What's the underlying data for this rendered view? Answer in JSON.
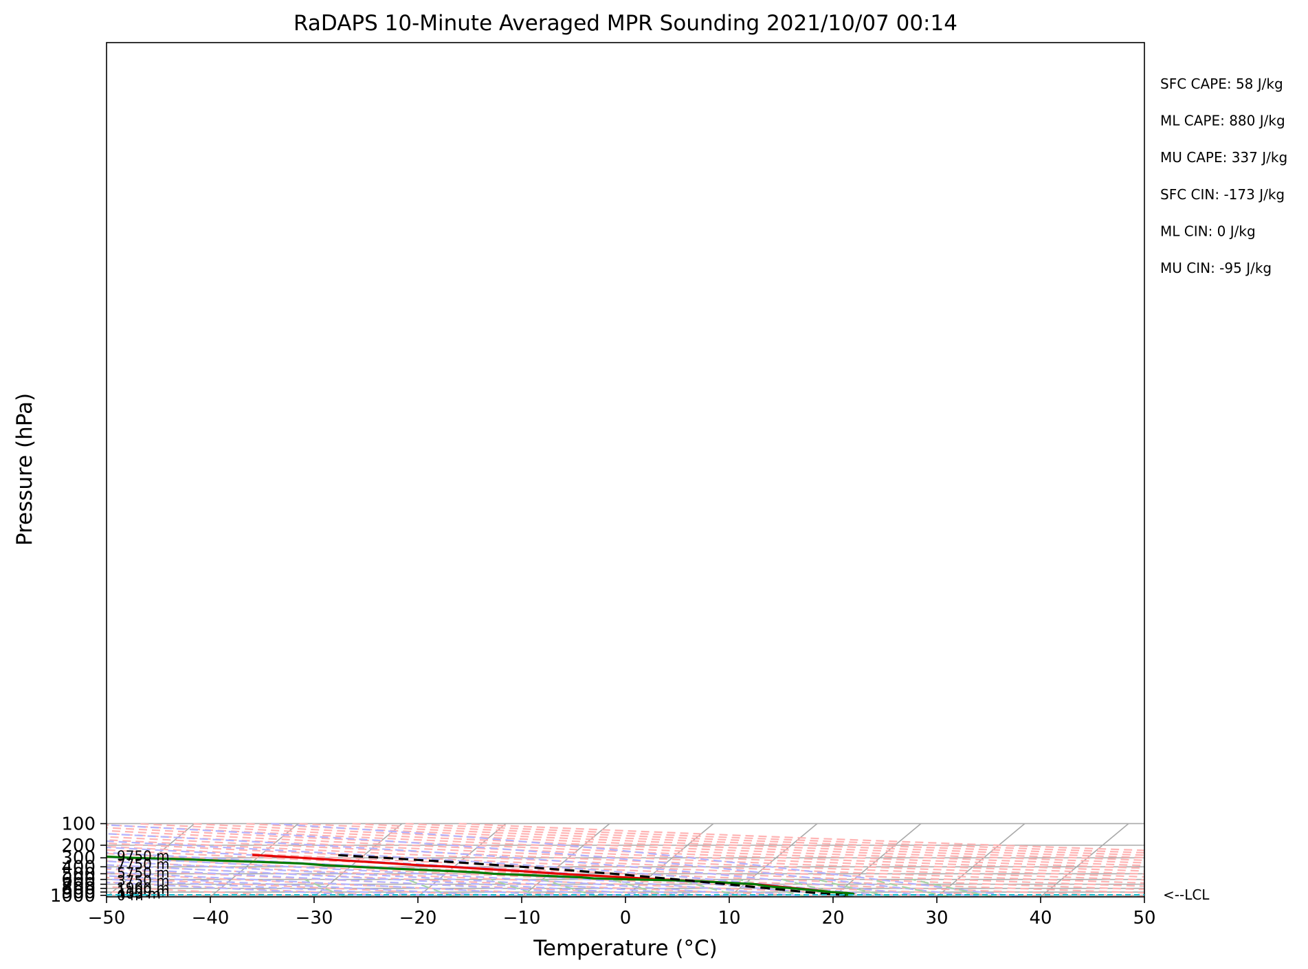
{
  "chart_data": {
    "type": "line",
    "subtype": "skew-t log-p diagram",
    "title": "RaDAPS 10-Minute Averaged MPR Sounding 2021/10/07 00:14",
    "xlabel": "Temperature (°C)",
    "ylabel": "Pressure (hPa)",
    "xlim": [
      -50,
      50
    ],
    "ylim": [
      1050,
      100
    ],
    "y_scale": "log",
    "x_ticks": [
      "−50",
      "−40",
      "−30",
      "−20",
      "−10",
      "0",
      "10",
      "20",
      "30",
      "40",
      "50"
    ],
    "y_ticks": [
      "100",
      "200",
      "300",
      "400",
      "500",
      "600",
      "700",
      "800",
      "900",
      "1000"
    ],
    "grid": true,
    "reference_lines": {
      "isotherms_color": "#a9a9a9",
      "dry_adiabats_color": "#ffb3b3",
      "moist_adiabats_color": "#b3b3ff",
      "mixing_ratio_color": "#a6d4a6"
    },
    "height_labels": [
      {
        "text": "0 m",
        "pressure": 1000
      },
      {
        "text": "400 m",
        "pressure": 953
      },
      {
        "text": "1100 m",
        "pressure": 876
      },
      {
        "text": "1900 m",
        "pressure": 791
      },
      {
        "text": "3750 m",
        "pressure": 626
      },
      {
        "text": "5750 m",
        "pressure": 483
      },
      {
        "text": "7750 m",
        "pressure": 369
      },
      {
        "text": "9750 m",
        "pressure": 281
      }
    ],
    "lcl": {
      "label": "<--LCL",
      "pressure": 985,
      "color": "#17becf"
    },
    "stats": [
      "SFC CAPE: 58 J/kg",
      "ML CAPE: 880 J/kg",
      "MU CAPE: 337 J/kg",
      "SFC CIN: -173 J/kg",
      "ML CIN: 0 J/kg",
      "MU CIN: -95 J/kg"
    ],
    "series": [
      {
        "color": "#e50000",
        "points": [
          {
            "p": 1000,
            "t": 21.0
          },
          {
            "p": 990,
            "t": 20.9
          },
          {
            "p": 975,
            "t": 21.5
          },
          {
            "p": 950,
            "t": 21.6
          },
          {
            "p": 925,
            "t": 20.8
          },
          {
            "p": 900,
            "t": 19.2
          },
          {
            "p": 850,
            "t": 17.6
          },
          {
            "p": 800,
            "t": 15.6
          },
          {
            "p": 750,
            "t": 13.4
          },
          {
            "p": 700,
            "t": 11.1
          },
          {
            "p": 680,
            "t": 9.2
          },
          {
            "p": 650,
            "t": 6.6
          },
          {
            "p": 625,
            "t": 3.8
          },
          {
            "p": 600,
            "t": 1.5
          },
          {
            "p": 575,
            "t": -1.0
          },
          {
            "p": 550,
            "t": -3.4
          },
          {
            "p": 525,
            "t": -6.3
          },
          {
            "p": 500,
            "t": -9.0
          },
          {
            "p": 475,
            "t": -11.4
          },
          {
            "p": 450,
            "t": -14.2
          },
          {
            "p": 425,
            "t": -17.3
          },
          {
            "p": 400,
            "t": -20.4
          },
          {
            "p": 380,
            "t": -23.5
          },
          {
            "p": 360,
            "t": -26.2
          },
          {
            "p": 340,
            "t": -29.2
          },
          {
            "p": 320,
            "t": -32.4
          },
          {
            "p": 300,
            "t": -35.7
          },
          {
            "p": 285,
            "t": -38.5
          },
          {
            "p": 273,
            "t": -40.8
          }
        ]
      },
      {
        "color": "#007a00",
        "points": [
          {
            "p": 1000,
            "t": 21.0
          },
          {
            "p": 990,
            "t": 20.9
          },
          {
            "p": 975,
            "t": 21.5
          },
          {
            "p": 950,
            "t": 21.6
          },
          {
            "p": 925,
            "t": 20.8
          },
          {
            "p": 900,
            "t": 19.2
          },
          {
            "p": 850,
            "t": 17.3
          },
          {
            "p": 800,
            "t": 15.2
          },
          {
            "p": 750,
            "t": 12.6
          },
          {
            "p": 700,
            "t": 11.0
          },
          {
            "p": 670,
            "t": 8.4
          },
          {
            "p": 640,
            "t": 5.8
          },
          {
            "p": 620,
            "t": 3.2
          },
          {
            "p": 600,
            "t": -1.4
          },
          {
            "p": 580,
            "t": -5.2
          },
          {
            "p": 560,
            "t": -6.6
          },
          {
            "p": 530,
            "t": -11.0
          },
          {
            "p": 500,
            "t": -15.4
          },
          {
            "p": 475,
            "t": -17.4
          },
          {
            "p": 450,
            "t": -21.4
          },
          {
            "p": 425,
            "t": -25.6
          },
          {
            "p": 400,
            "t": -29.4
          },
          {
            "p": 380,
            "t": -32.6
          },
          {
            "p": 360,
            "t": -35.0
          },
          {
            "p": 345,
            "t": -38.4
          },
          {
            "p": 330,
            "t": -42.8
          },
          {
            "p": 315,
            "t": -46.4
          },
          {
            "p": 300,
            "t": -52.0
          },
          {
            "p": 285,
            "t": -55.6
          },
          {
            "p": 273,
            "t": -58.0
          }
        ]
      },
      {
        "color": "#000000",
        "dashed": true,
        "points": [
          {
            "p": 1000,
            "t": 21.0
          },
          {
            "p": 985,
            "t": 20.6
          },
          {
            "p": 950,
            "t": 18.8
          },
          {
            "p": 900,
            "t": 16.8
          },
          {
            "p": 850,
            "t": 14.9
          },
          {
            "p": 800,
            "t": 12.8
          },
          {
            "p": 750,
            "t": 10.6
          },
          {
            "p": 700,
            "t": 8.3
          },
          {
            "p": 650,
            "t": 5.7
          },
          {
            "p": 600,
            "t": 2.9
          },
          {
            "p": 550,
            "t": -0.3
          },
          {
            "p": 500,
            "t": -3.9
          },
          {
            "p": 450,
            "t": -8.2
          },
          {
            "p": 400,
            "t": -13.4
          },
          {
            "p": 350,
            "t": -19.8
          },
          {
            "p": 300,
            "t": -27.8
          },
          {
            "p": 275,
            "t": -32.5
          }
        ]
      }
    ]
  }
}
